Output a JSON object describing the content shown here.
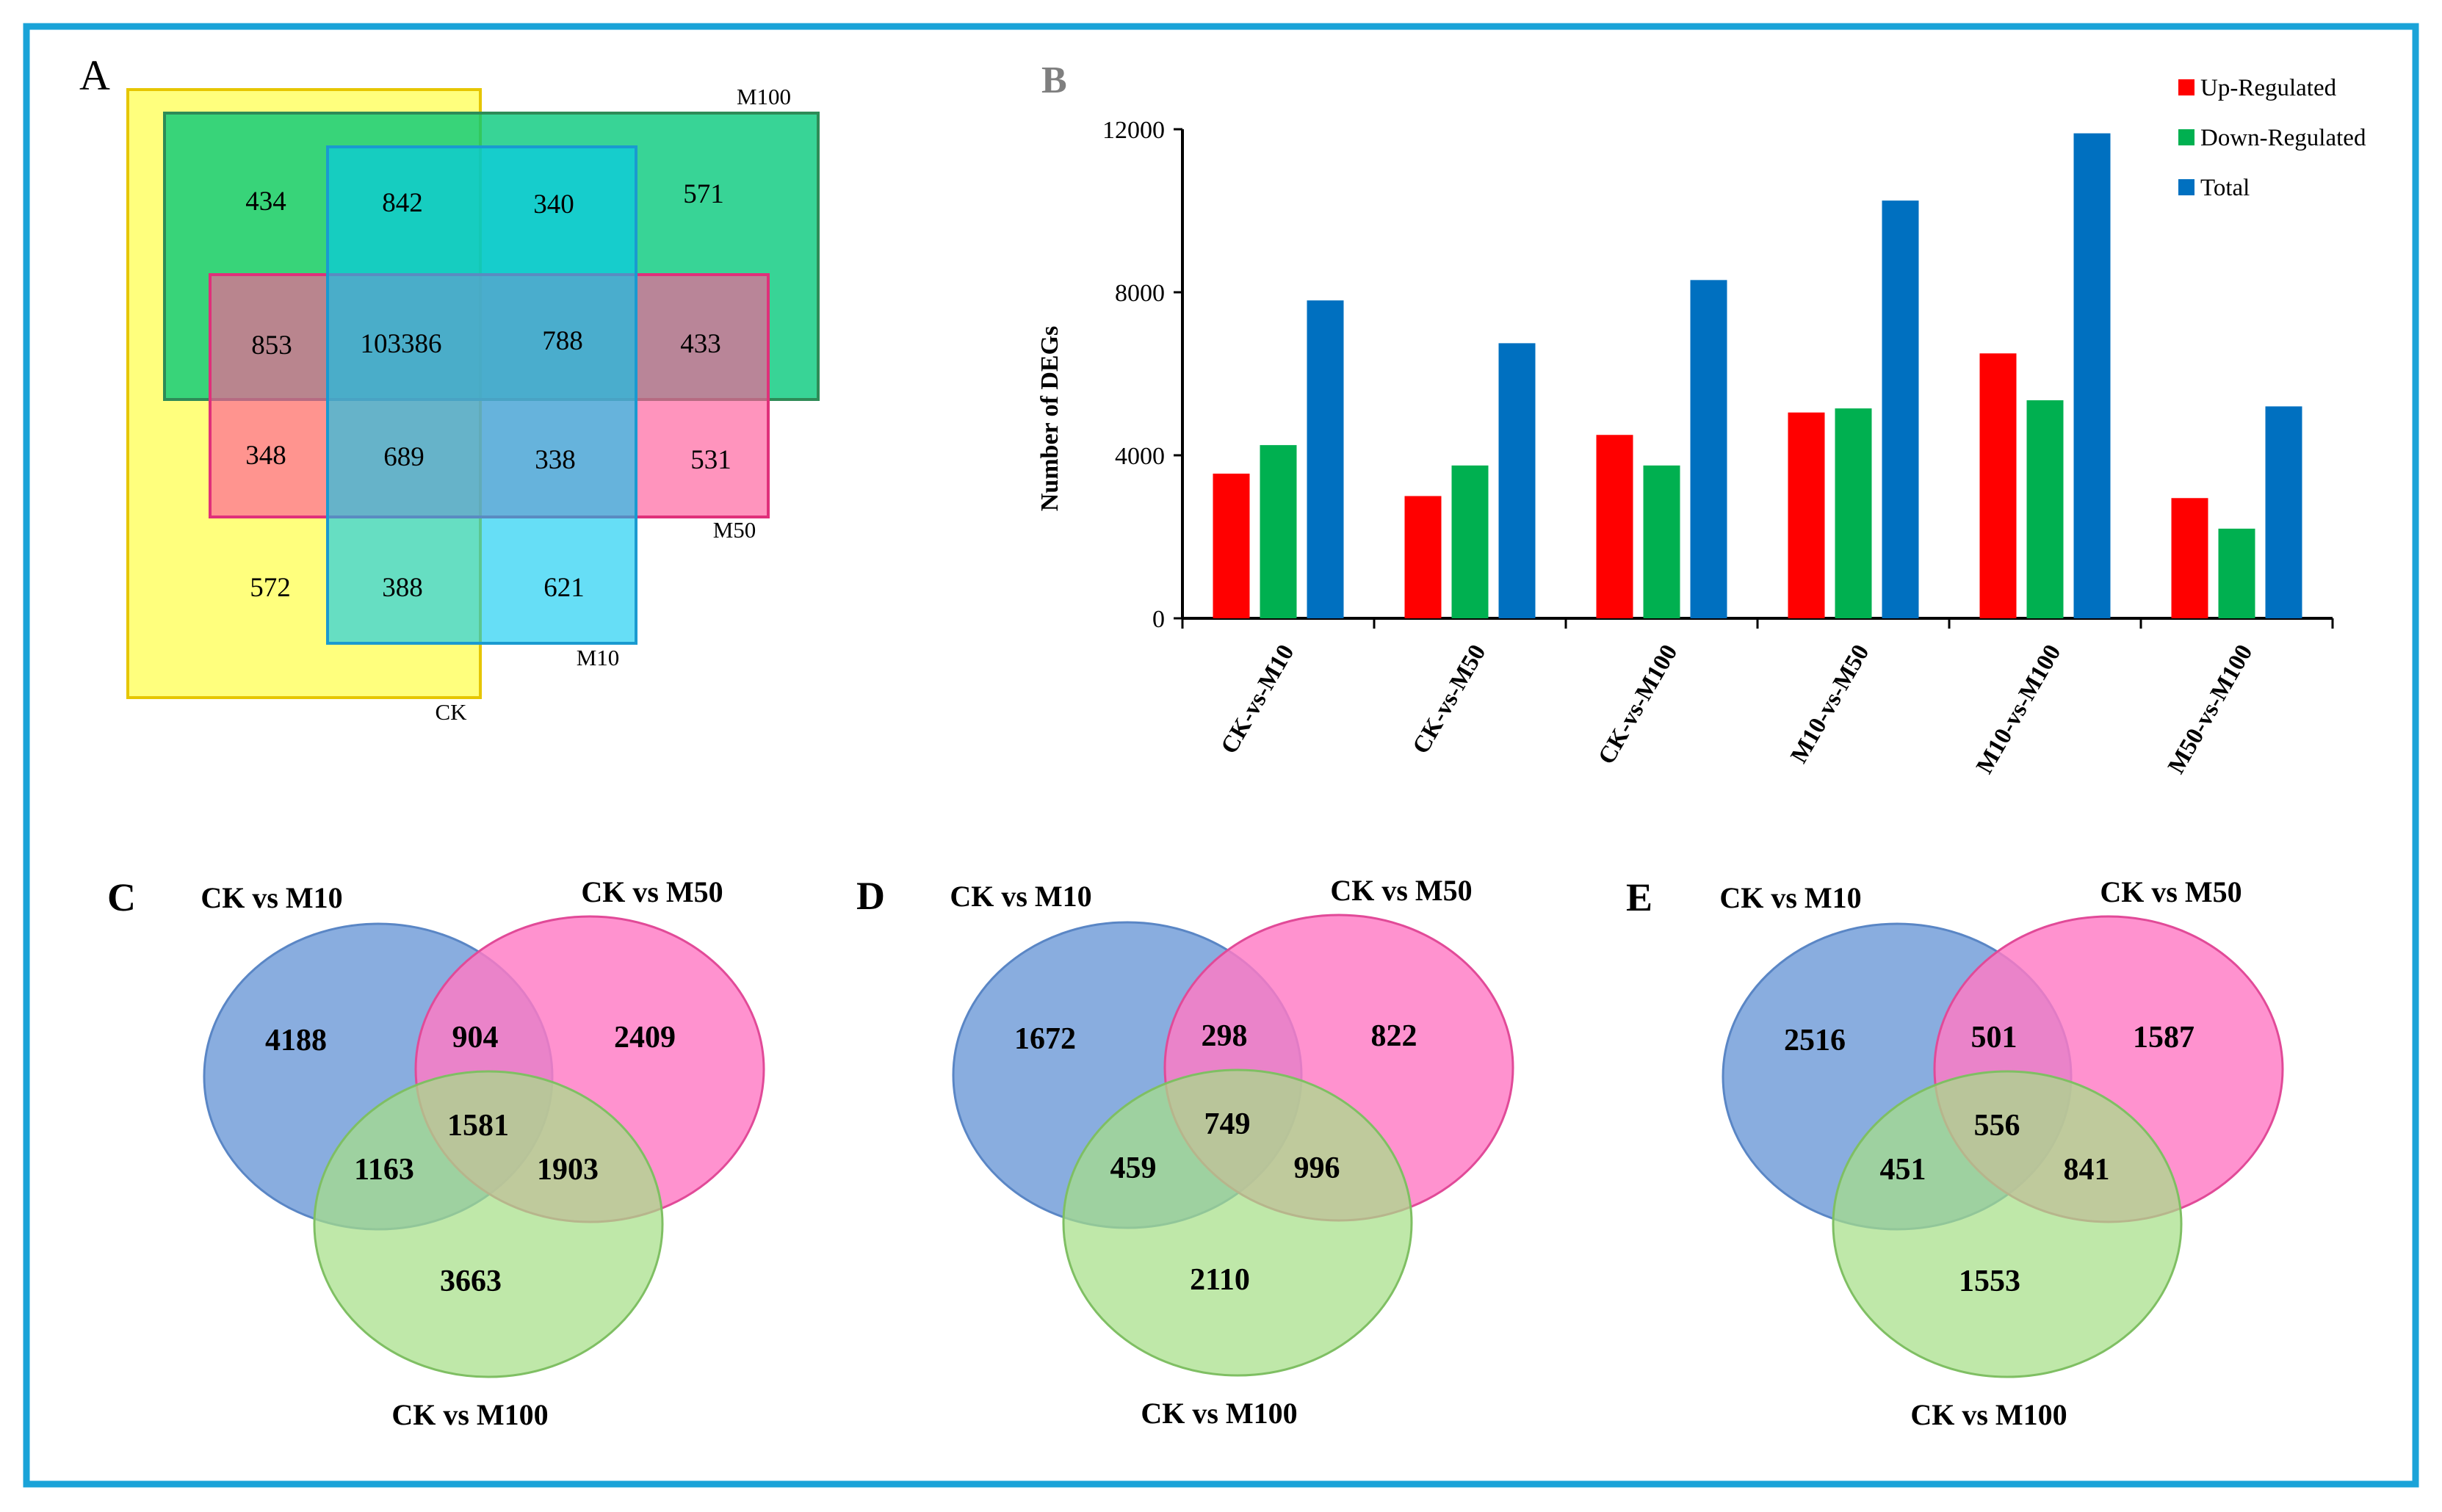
{
  "colors": {
    "frame": "#1aa3d8",
    "up": "#ff0000",
    "down": "#00b050",
    "total": "#0070c0",
    "ck_fill": "#ffff66",
    "m100_fill": "#00c878",
    "m50_fill": "#ff5a9a",
    "m10_fill": "#00c8f0",
    "venn_blue": "#6f9bd8",
    "venn_pink": "#ff7ac4",
    "venn_green": "#a6df88"
  },
  "panel_a": {
    "letter": "A",
    "set_labels": {
      "ck": "CK",
      "m10": "M10",
      "m50": "M50",
      "m100": "M100"
    },
    "regions": [
      {
        "id": "a-434",
        "value": "434"
      },
      {
        "id": "a-842",
        "value": "842"
      },
      {
        "id": "a-340",
        "value": "340"
      },
      {
        "id": "a-571",
        "value": "571"
      },
      {
        "id": "a-853",
        "value": "853"
      },
      {
        "id": "a-103386",
        "value": "103386"
      },
      {
        "id": "a-788",
        "value": "788"
      },
      {
        "id": "a-433",
        "value": "433"
      },
      {
        "id": "a-348",
        "value": "348"
      },
      {
        "id": "a-689",
        "value": "689"
      },
      {
        "id": "a-338",
        "value": "338"
      },
      {
        "id": "a-531",
        "value": "531"
      },
      {
        "id": "a-572",
        "value": "572"
      },
      {
        "id": "a-388",
        "value": "388"
      },
      {
        "id": "a-621",
        "value": "621"
      }
    ]
  },
  "chart_data": {
    "type": "bar",
    "panel_letter": "B",
    "title": "",
    "xlabel": "",
    "ylabel": "Number of DEGs",
    "ylim": [
      0,
      12000
    ],
    "yticks": [
      "0",
      "4000",
      "8000",
      "12000"
    ],
    "legend_position": "top-right",
    "categories": [
      "CK-vs-M10",
      "CK-vs-M50",
      "CK-vs-M100",
      "M10-vs-M50",
      "M10-vs-M100",
      "M50-vs-M100"
    ],
    "series": [
      {
        "name": "Up-Regulated",
        "values": [
          3550,
          3000,
          4500,
          5050,
          6500,
          2950
        ]
      },
      {
        "name": "Down-Regulated",
        "values": [
          4250,
          3750,
          3750,
          5150,
          5350,
          2200
        ]
      },
      {
        "name": "Total",
        "values": [
          7800,
          6750,
          8300,
          10250,
          11900,
          5200
        ]
      }
    ]
  },
  "venns": [
    {
      "letter": "C",
      "labels": {
        "a": "CK vs M10",
        "b": "CK vs M50",
        "c": "CK vs M100"
      },
      "values": {
        "a_only": "4188",
        "ab": "904",
        "b_only": "2409",
        "abc": "1581",
        "ac": "1163",
        "bc": "1903",
        "c_only": "3663"
      }
    },
    {
      "letter": "D",
      "labels": {
        "a": "CK vs M10",
        "b": "CK vs M50",
        "c": "CK vs M100"
      },
      "values": {
        "a_only": "1672",
        "ab": "298",
        "b_only": "822",
        "abc": "749",
        "ac": "459",
        "bc": "996",
        "c_only": "2110"
      }
    },
    {
      "letter": "E",
      "labels": {
        "a": "CK vs M10",
        "b": "CK vs M50",
        "c": "CK vs M100"
      },
      "values": {
        "a_only": "2516",
        "ab": "501",
        "b_only": "1587",
        "abc": "556",
        "ac": "451",
        "bc": "841",
        "c_only": "1553"
      }
    }
  ]
}
